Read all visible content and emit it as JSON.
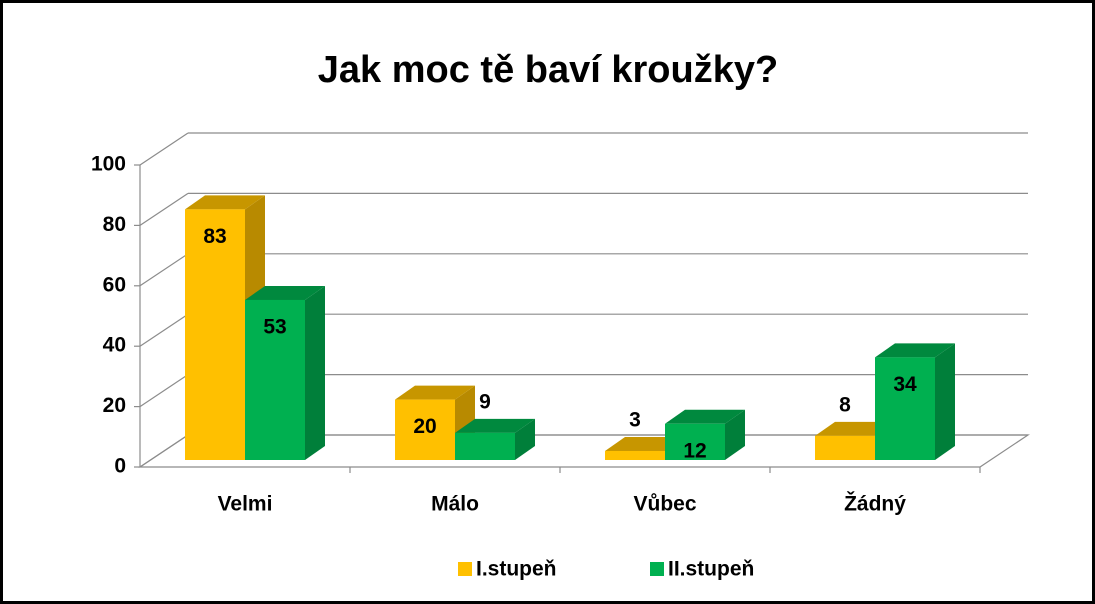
{
  "chart_data": {
    "type": "bar3d",
    "title": "Jak moc tě baví kroužky?",
    "categories": [
      "Velmi",
      "Málo",
      "Vůbec",
      "Žádný"
    ],
    "series": [
      {
        "name": "I.stupeň",
        "color": "#FFC000",
        "values": [
          83,
          20,
          3,
          8
        ]
      },
      {
        "name": "II.stupeň",
        "color": "#00B050",
        "values": [
          53,
          9,
          12,
          34
        ]
      }
    ],
    "ylim": [
      0,
      100
    ],
    "yticks": [
      0,
      20,
      40,
      60,
      80,
      100
    ],
    "grid": true,
    "legend": "bottom"
  }
}
